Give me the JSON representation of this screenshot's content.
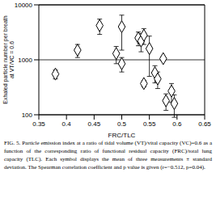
{
  "chart_data": {
    "type": "scatter",
    "xlabel": "FRC/TLC",
    "ylabel": "Exhaled particle number per breath at VT/VC = 0.6",
    "x": [
      0.38,
      0.42,
      0.46,
      0.49,
      0.5,
      0.5,
      0.53,
      0.535,
      0.54,
      0.54,
      0.55,
      0.56,
      0.565,
      0.575,
      0.58,
      0.59,
      0.595
    ],
    "values": [
      550,
      1500,
      4200,
      1300,
      4000,
      850,
      2500,
      2200,
      2800,
      370,
      1600,
      580,
      450,
      1050,
      180,
      270,
      160
    ],
    "errors": [
      100,
      400,
      1300,
      450,
      2500,
      250,
      700,
      800,
      900,
      50,
      1100,
      200,
      150,
      100,
      60,
      100,
      70
    ],
    "xlim": [
      0.35,
      0.65
    ],
    "xticks": [
      0.35,
      0.4,
      0.45,
      0.5,
      0.55,
      0.6,
      0.65
    ],
    "ylim": [
      100,
      10000
    ],
    "yticks": [
      100,
      1000,
      10000
    ],
    "log": "y",
    "grid": true,
    "marker": "diamond",
    "color": "#000000"
  },
  "caption": "FIG. 5. Particle emission index at a ratio of tidal volume (VT)/vital capacity (VC)=0.6 as a function of the corresponding ratio of functional residual capacity (FRC)/total lung capacity (TLC). Each symbol displays the mean of three measurements ± standard deviation. The Spearman correlation coefficient and p value is given (r=−0.512, p=0.04)."
}
